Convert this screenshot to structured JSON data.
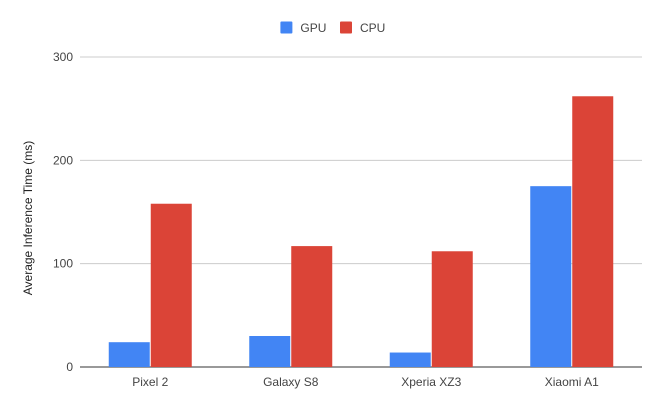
{
  "chart_data": {
    "type": "bar",
    "title": "",
    "xlabel": "",
    "ylabel": "Average Inference Time (ms)",
    "categories": [
      "Pixel 2",
      "Galaxy S8",
      "Xperia XZ3",
      "Xiaomi A1"
    ],
    "series": [
      {
        "name": "GPU",
        "color": "#4285f4",
        "values": [
          24,
          30,
          14,
          175
        ]
      },
      {
        "name": "CPU",
        "color": "#db4437",
        "values": [
          158,
          117,
          112,
          262
        ]
      }
    ],
    "ylim": [
      0,
      300
    ],
    "yticks": [
      "0",
      "100",
      "200",
      "300"
    ],
    "grid": true,
    "legend_position": "top-center"
  }
}
